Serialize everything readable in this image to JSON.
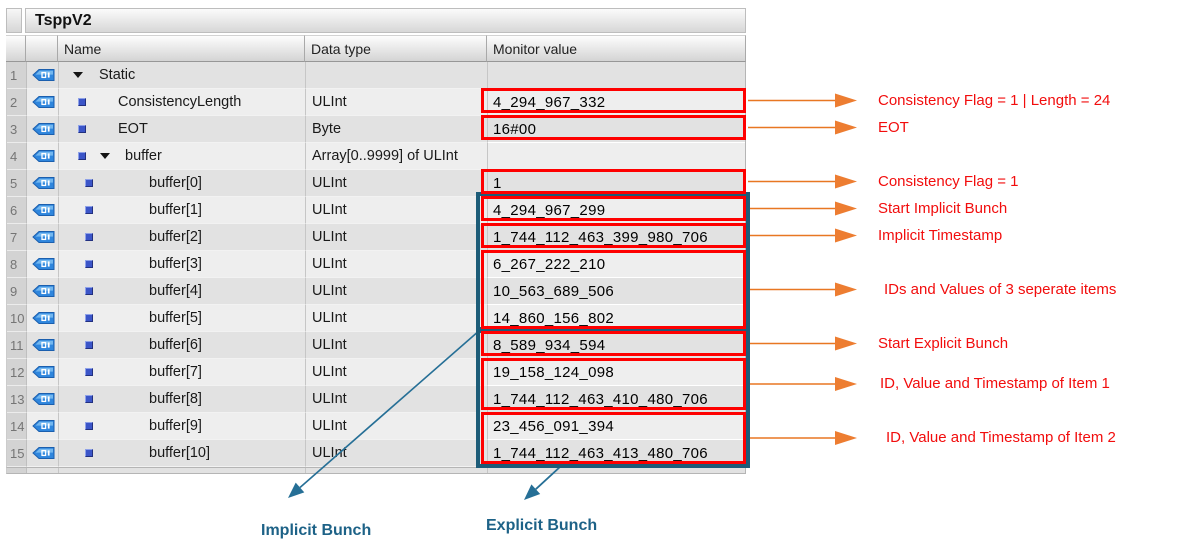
{
  "table": {
    "title": "TsppV2",
    "columns": {
      "name": "Name",
      "data_type": "Data type",
      "monitor_value": "Monitor value"
    },
    "rows": [
      {
        "num": "1",
        "name": "Static",
        "data_type": "",
        "value": null,
        "kind": "root"
      },
      {
        "num": "2",
        "name": "ConsistencyLength",
        "data_type": "ULInt",
        "value": "4_294_967_332",
        "kind": "member"
      },
      {
        "num": "3",
        "name": "EOT",
        "data_type": "Byte",
        "value": "16#00",
        "kind": "member"
      },
      {
        "num": "4",
        "name": "buffer",
        "data_type": "Array[0..9999] of ULInt",
        "value": null,
        "kind": "array"
      },
      {
        "num": "5",
        "name": "buffer[0]",
        "data_type": "ULInt",
        "value": "1",
        "kind": "element"
      },
      {
        "num": "6",
        "name": "buffer[1]",
        "data_type": "ULInt",
        "value": "4_294_967_299",
        "kind": "element"
      },
      {
        "num": "7",
        "name": "buffer[2]",
        "data_type": "ULInt",
        "value": "1_744_112_463_399_980_706",
        "kind": "element"
      },
      {
        "num": "8",
        "name": "buffer[3]",
        "data_type": "ULInt",
        "value": "6_267_222_210",
        "kind": "element"
      },
      {
        "num": "9",
        "name": "buffer[4]",
        "data_type": "ULInt",
        "value": "10_563_689_506",
        "kind": "element"
      },
      {
        "num": "10",
        "name": "buffer[5]",
        "data_type": "ULInt",
        "value": "14_860_156_802",
        "kind": "element"
      },
      {
        "num": "11",
        "name": "buffer[6]",
        "data_type": "ULInt",
        "value": "8_589_934_594",
        "kind": "element"
      },
      {
        "num": "12",
        "name": "buffer[7]",
        "data_type": "ULInt",
        "value": "19_158_124_098",
        "kind": "element"
      },
      {
        "num": "13",
        "name": "buffer[8]",
        "data_type": "ULInt",
        "value": "1_744_112_463_410_480_706",
        "kind": "element"
      },
      {
        "num": "14",
        "name": "buffer[9]",
        "data_type": "ULInt",
        "value": "23_456_091_394",
        "kind": "element"
      },
      {
        "num": "15",
        "name": "buffer[10]",
        "data_type": "ULInt",
        "value": "1_744_112_463_413_480_706",
        "kind": "element"
      }
    ]
  },
  "annotations": {
    "text_color": "#f20d0d",
    "arrow_color": "#ed7d31",
    "box_color": "#fe0000",
    "items": [
      {
        "label": "Consistency Flag = 1 | Length = 24",
        "target_rows": "2"
      },
      {
        "label": "EOT",
        "target_rows": "3"
      },
      {
        "label": "Consistency Flag = 1",
        "target_rows": "5"
      },
      {
        "label": "Start Implicit Bunch",
        "target_rows": "6"
      },
      {
        "label": "Implicit Timestamp",
        "target_rows": "7"
      },
      {
        "label": "IDs and Values of 3 seperate items",
        "target_rows": "8-10"
      },
      {
        "label": "Start Explicit Bunch",
        "target_rows": "11"
      },
      {
        "label": "ID, Value and Timestamp of Item 1",
        "target_rows": "12-13"
      },
      {
        "label": "ID, Value and Timestamp of Item 2",
        "target_rows": "14-15"
      }
    ]
  },
  "bunches": [
    {
      "label": "Implicit Bunch",
      "rows": "6-10"
    },
    {
      "label": "Explicit Bunch",
      "rows": "11-15"
    }
  ],
  "bunch_style": {
    "box_color": "#1d5c78",
    "label_color": "#1d6287"
  },
  "value_cell_fill": "#f9b357"
}
